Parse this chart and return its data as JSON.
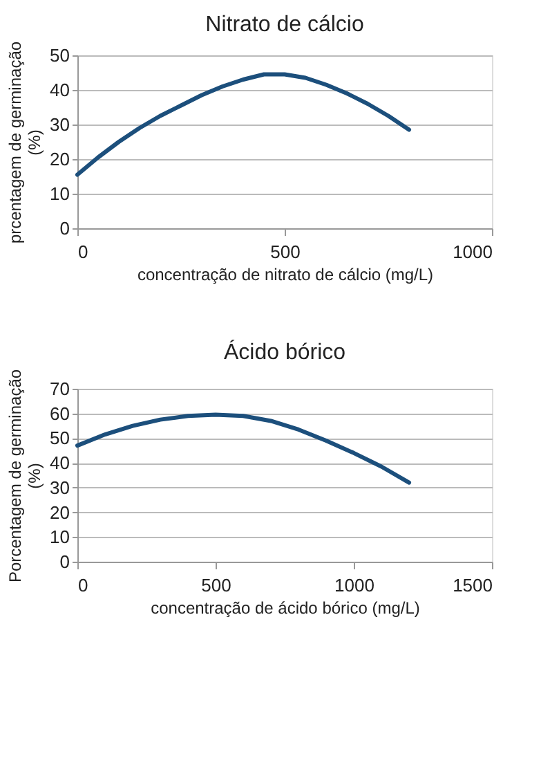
{
  "chart_data": [
    {
      "type": "line",
      "title": "Nitrato  de cálcio",
      "xlabel": "concentração de nitrato de cálcio (mg/L)",
      "ylabel": "prcentagem de germinação (%)",
      "xlim": [
        0,
        1000
      ],
      "xticks": [
        0,
        500,
        1000
      ],
      "ylim": [
        0,
        50
      ],
      "yticks": [
        0,
        10,
        20,
        30,
        40,
        50
      ],
      "grid": "y",
      "marker": "none",
      "line_style": "solid",
      "series": [
        {
          "color": "#1c4f7c",
          "x": [
            0,
            50,
            100,
            150,
            200,
            250,
            300,
            350,
            400,
            450,
            500,
            550,
            600,
            650,
            700,
            750,
            800
          ],
          "values": [
            15.5,
            20.5,
            25,
            29,
            32.5,
            35.5,
            38.5,
            41,
            43,
            44.5,
            44.5,
            43.5,
            41.5,
            39,
            36,
            32.5,
            28.5
          ]
        }
      ]
    },
    {
      "type": "line",
      "title": "Ácido bórico",
      "xlabel": "concentração de ácido bórico (mg/L)",
      "ylabel": "Porcentagem de germinação (%)",
      "xlim": [
        0,
        1500
      ],
      "xticks": [
        0,
        500,
        1000,
        1500
      ],
      "ylim": [
        0,
        70
      ],
      "yticks": [
        0,
        10,
        20,
        30,
        40,
        50,
        60,
        70
      ],
      "grid": "y",
      "marker": "none",
      "line_style": "solid",
      "series": [
        {
          "color": "#1c4f7c",
          "x": [
            0,
            100,
            200,
            300,
            400,
            500,
            600,
            700,
            800,
            900,
            1000,
            1100,
            1200
          ],
          "values": [
            47,
            51.5,
            55,
            57.5,
            59,
            59.5,
            59,
            57,
            53.5,
            49,
            44,
            38.5,
            32
          ]
        }
      ]
    }
  ]
}
